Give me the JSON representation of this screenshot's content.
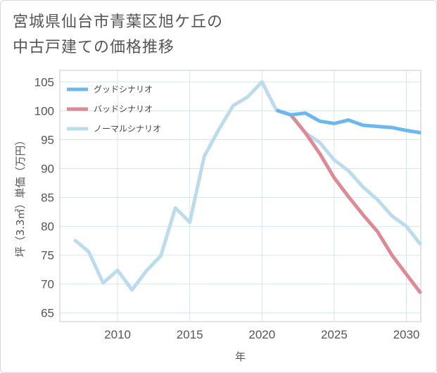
{
  "title": {
    "line1": "宮城県仙台市青葉区旭ケ丘の",
    "line2": "中古戸建ての価格推移"
  },
  "chart_data": {
    "type": "line",
    "xlabel": "年",
    "ylabel": "坪（3.3㎡）単価（万円）",
    "xlim": [
      2006,
      2031
    ],
    "ylim": [
      63.5,
      107
    ],
    "xticks": [
      2010,
      2015,
      2020,
      2025,
      2030
    ],
    "yticks": [
      65,
      70,
      75,
      80,
      85,
      90,
      95,
      100,
      105
    ],
    "grid": true,
    "legend_position": "top-left",
    "series": [
      {
        "name": "グッドシナリオ",
        "color": "#6cb8ee",
        "x": [
          2021,
          2022,
          2023,
          2024,
          2025,
          2026,
          2027,
          2028,
          2029,
          2030,
          2031
        ],
        "values": [
          100.1,
          99.3,
          99.6,
          98.2,
          97.8,
          98.4,
          97.5,
          97.3,
          97.1,
          96.6,
          96.2
        ]
      },
      {
        "name": "バッドシナリオ",
        "color": "#dd8a94",
        "x": [
          2021,
          2022,
          2023,
          2024,
          2025,
          2026,
          2027,
          2028,
          2029,
          2030,
          2031
        ],
        "values": [
          100.1,
          99.3,
          96.2,
          92.6,
          88.4,
          85.1,
          82.0,
          79.1,
          75.0,
          71.7,
          68.4
        ]
      },
      {
        "name": "ノーマルシナリオ",
        "color": "#bcdcec",
        "x": [
          2007,
          2008,
          2009,
          2010,
          2011,
          2012,
          2013,
          2014,
          2015,
          2016,
          2017,
          2018,
          2019,
          2020,
          2021,
          2022,
          2023,
          2024,
          2025,
          2026,
          2027,
          2028,
          2029,
          2030,
          2031
        ],
        "values": [
          77.7,
          75.6,
          70.2,
          72.4,
          69.0,
          72.3,
          74.9,
          83.2,
          80.7,
          92.1,
          96.7,
          100.9,
          102.4,
          105.0,
          100.1,
          99.3,
          96.2,
          94.5,
          91.5,
          89.6,
          86.8,
          84.6,
          81.8,
          80.0,
          76.8
        ]
      }
    ]
  }
}
